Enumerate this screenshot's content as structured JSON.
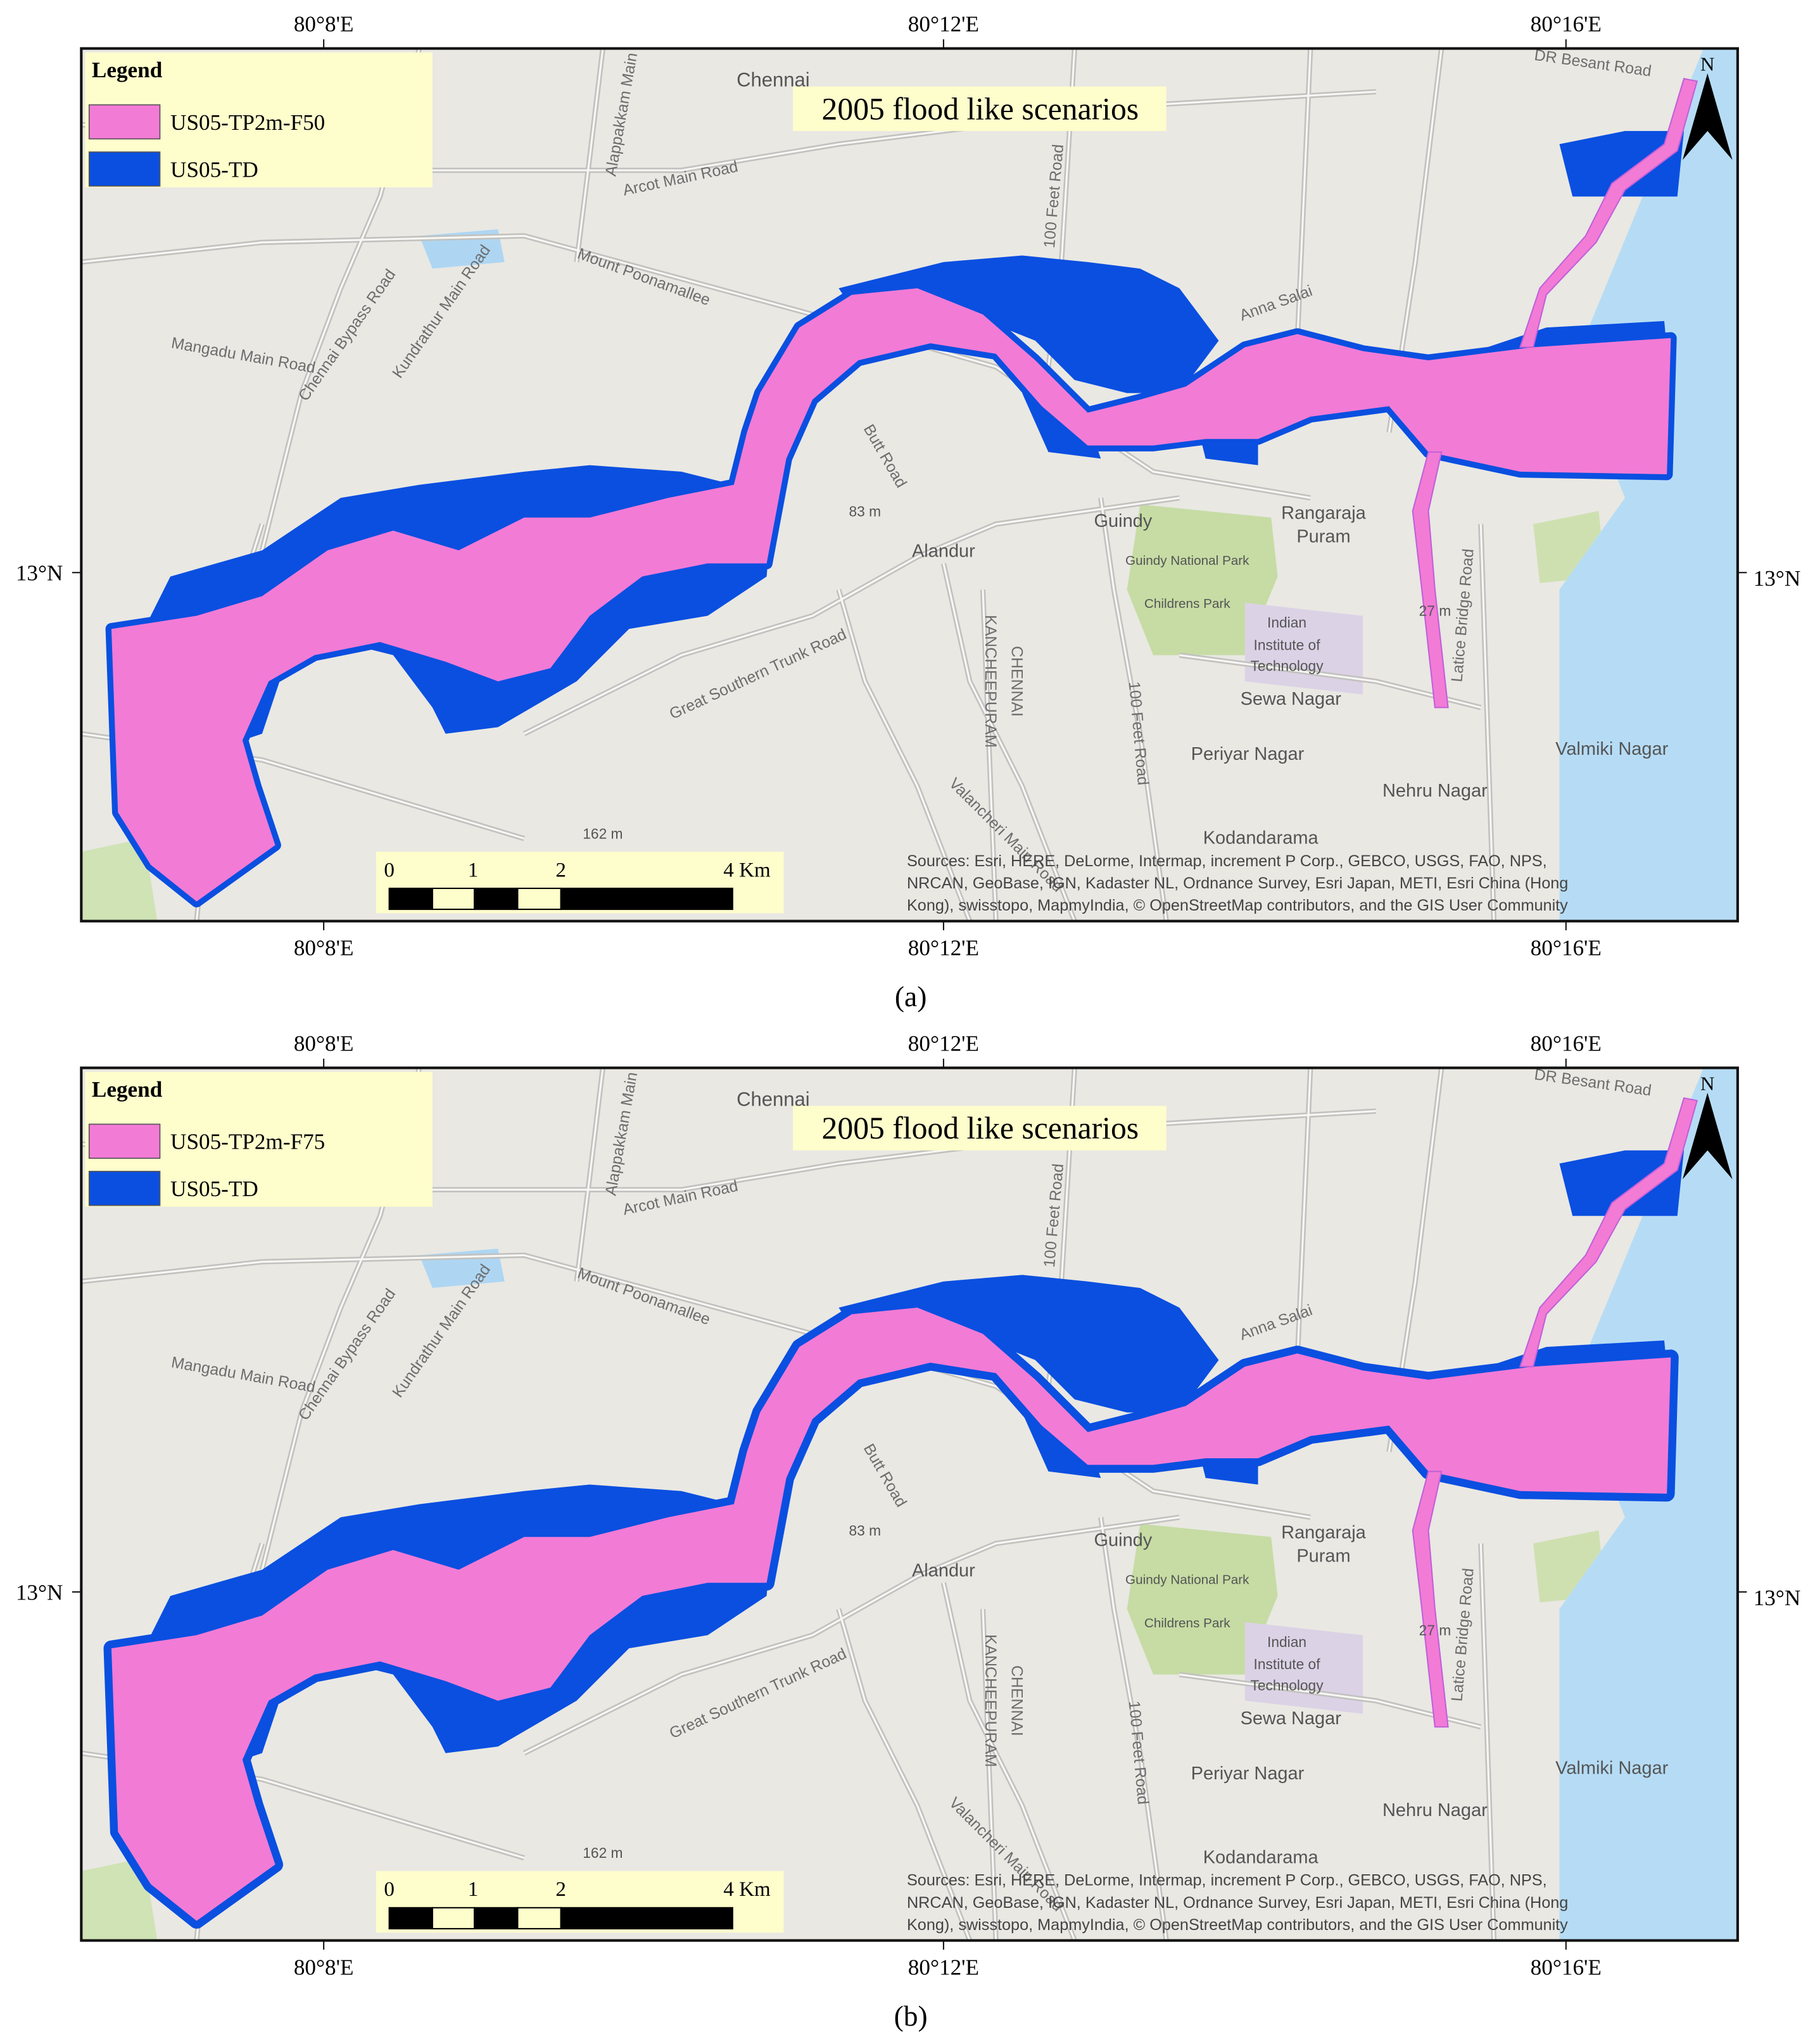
{
  "panels": [
    {
      "label": "(a)",
      "title": "2005 flood like scenarios",
      "legend": {
        "title": "Legend",
        "items": [
          {
            "label": "US05-TP2m-F50",
            "color": "#f27bd6"
          },
          {
            "label": "US05-TD",
            "color": "#0a4fe0"
          }
        ]
      },
      "lon_labels": [
        "80°8'E",
        "80°12'E",
        "80°16'E"
      ],
      "lat_label": "13°N",
      "north": "N",
      "scale_labels": [
        "0",
        "1",
        "2",
        "4 Km"
      ],
      "places": [
        "Chennai",
        "Guindy",
        "Rangaraja",
        "Puram",
        "Alandur",
        "Sewa Nagar",
        "Periyar Nagar",
        "Nehru Nagar",
        "Valmiki Nagar",
        "Kodandarama",
        "Indian",
        "Institute of",
        "Technology",
        "Guindy National Park",
        "Childrens Park",
        "83 m",
        "162 m",
        "27 m"
      ],
      "roads": [
        "Arcot Main Road",
        "Mount Poonamallee",
        "Mangadu Main Road",
        "Chennai Bypass Road",
        "Kundrathur Main Road",
        "Great Southern Trunk Road",
        "Butt Road",
        "100 Feet Road",
        "Valancheri Main Road",
        "Latice Bridge Road",
        "KANCHEEPURAM",
        "CHENNAI",
        "Anna Salai",
        "DR Besant Road",
        "Alappakkam Main",
        "100 Feet Road"
      ],
      "sources": [
        "Sources: Esri, HERE, DeLorme, Intermap, increment P Corp., GEBCO, USGS, FAO, NPS,",
        "NRCAN, GeoBase, IGN, Kadaster NL, Ordnance Survey, Esri Japan, METI, Esri China (Hong",
        "Kong), swisstopo, MapmyIndia, © OpenStreetMap contributors, and the GIS User Community"
      ]
    },
    {
      "label": "(b)",
      "title": "2005 flood like scenarios",
      "legend": {
        "title": "Legend",
        "items": [
          {
            "label": "US05-TP2m-F75",
            "color": "#f27bd6"
          },
          {
            "label": "US05-TD",
            "color": "#0a4fe0"
          }
        ]
      },
      "lon_labels": [
        "80°8'E",
        "80°12'E",
        "80°16'E"
      ],
      "lat_label": "13°N",
      "north": "N",
      "scale_labels": [
        "0",
        "1",
        "2",
        "4 Km"
      ],
      "places": [
        "Chennai",
        "Guindy",
        "Rangaraja",
        "Puram",
        "Alandur",
        "Sewa Nagar",
        "Periyar Nagar",
        "Nehru Nagar",
        "Valmiki Nagar",
        "Kodandarama",
        "Indian",
        "Institute of",
        "Technology",
        "Guindy National Park",
        "Childrens Park",
        "83 m",
        "162 m",
        "27 m"
      ],
      "roads": [
        "Arcot Main Road",
        "Mount Poonamallee",
        "Mangadu Main Road",
        "Chennai Bypass Road",
        "Kundrathur Main Road",
        "Great Southern Trunk Road",
        "Butt Road",
        "100 Feet Road",
        "Valancheri Main Road",
        "Latice Bridge Road",
        "KANCHEEPURAM",
        "CHENNAI",
        "Anna Salai",
        "DR Besant Road",
        "Alappakkam Main",
        "100 Feet Road"
      ],
      "sources": [
        "Sources: Esri, HERE, DeLorme, Intermap, increment P Corp., GEBCO, USGS, FAO, NPS,",
        "NRCAN, GeoBase, IGN, Kadaster NL, Ordnance Survey, Esri Japan, METI, Esri China (Hong",
        "Kong), swisstopo, MapmyIndia, © OpenStreetMap contributors, and the GIS User Community"
      ]
    }
  ]
}
